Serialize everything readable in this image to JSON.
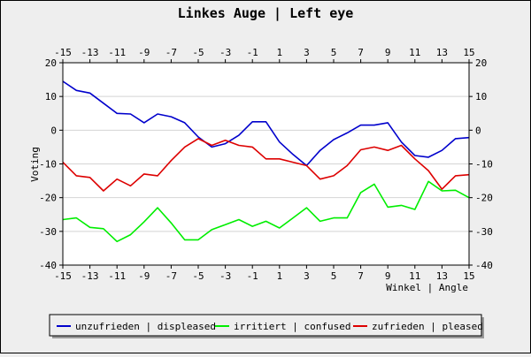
{
  "chart_data": {
    "type": "line",
    "title": "Linkes Auge | Left eye",
    "xlabel": "Winkel | Angle",
    "ylabel": "Voting",
    "xlim": [
      -15,
      15
    ],
    "ylim": [
      -40,
      20
    ],
    "x_ticks": [
      -15,
      -13,
      -11,
      -9,
      -7,
      -5,
      -3,
      -1,
      1,
      3,
      5,
      7,
      9,
      11,
      13,
      15
    ],
    "y_ticks": [
      20,
      10,
      0,
      -10,
      -20,
      -30,
      -40
    ],
    "grid": true,
    "legend_position": "bottom",
    "x": [
      -15,
      -14,
      -13,
      -12,
      -11,
      -10,
      -9,
      -8,
      -7,
      -6,
      -5,
      -4,
      -3,
      -2,
      -1,
      0,
      1,
      2,
      3,
      4,
      5,
      6,
      7,
      8,
      9,
      10,
      11,
      12,
      13,
      14,
      15
    ],
    "series": [
      {
        "name": "unzufrieden | displeased",
        "color": "#0000cc",
        "values": [
          14.5,
          11.8,
          11.0,
          8.0,
          5.0,
          4.8,
          2.2,
          4.8,
          4.0,
          2.2,
          -2.0,
          -5.0,
          -4.0,
          -1.5,
          2.5,
          2.5,
          -3.5,
          -7.2,
          -10.5,
          -6.0,
          -2.8,
          -0.8,
          1.5,
          1.5,
          2.2,
          -3.5,
          -7.5,
          -8.0,
          -6.0,
          -2.5,
          -2.2
        ]
      },
      {
        "name": "irritiert | confused",
        "color": "#00ee00",
        "values": [
          -26.5,
          -26.0,
          -28.8,
          -29.2,
          -33.0,
          -31.0,
          -27.2,
          -23.0,
          -27.5,
          -32.5,
          -32.5,
          -29.5,
          -28.0,
          -26.5,
          -28.5,
          -27.0,
          -29.0,
          -26.0,
          -23.0,
          -27.0,
          -26.0,
          -26.0,
          -18.5,
          -16.0,
          -22.8,
          -22.3,
          -23.5,
          -15.2,
          -18.0,
          -17.8,
          -20.0
        ]
      },
      {
        "name": "zufrieden | pleased",
        "color": "#dd0000",
        "values": [
          -9.5,
          -13.5,
          -14.0,
          -18.0,
          -14.5,
          -16.5,
          -13.0,
          -13.5,
          -9.0,
          -5.0,
          -2.5,
          -4.5,
          -3.0,
          -4.5,
          -5.0,
          -8.5,
          -8.5,
          -9.5,
          -10.5,
          -14.5,
          -13.5,
          -10.5,
          -5.8,
          -5.0,
          -6.0,
          -4.5,
          -8.5,
          -12.0,
          -17.5,
          -13.5,
          -13.2
        ]
      }
    ]
  }
}
